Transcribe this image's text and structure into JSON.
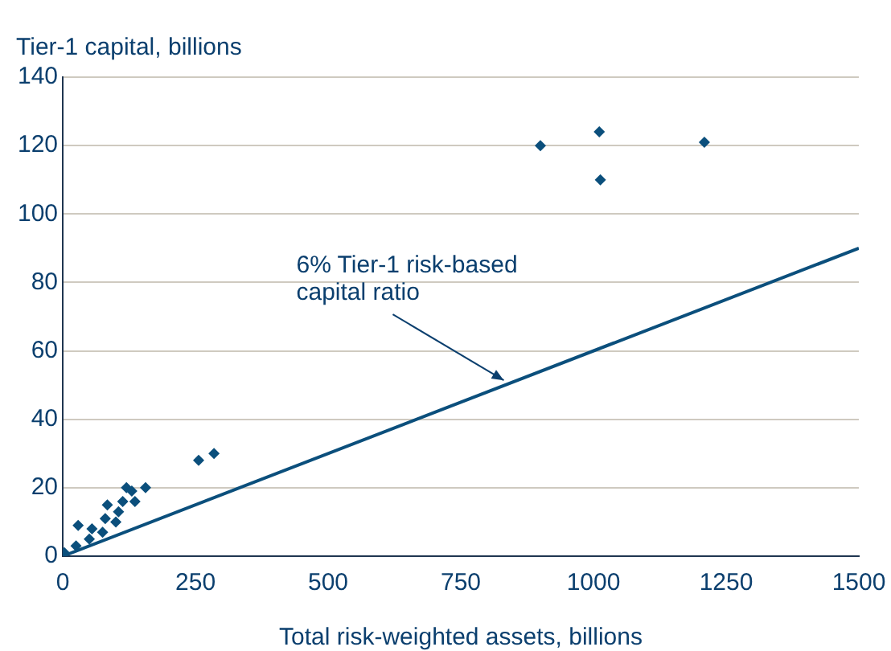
{
  "chart_data": {
    "type": "scatter",
    "xlabel": "Total risk-weighted assets, billions",
    "ylabel": "Tier-1 capital, billions",
    "xlim": [
      0,
      1500
    ],
    "xticks": [
      0,
      250,
      500,
      750,
      1000,
      1250,
      1500
    ],
    "ylim": [
      0,
      140
    ],
    "yticks": [
      0,
      20,
      40,
      60,
      80,
      100,
      120,
      140
    ],
    "grid": "y",
    "legend": false,
    "marker": "diamond",
    "series": [
      {
        "color": "#0b4f7c",
        "x": [
          900,
          1011,
          1013,
          1209,
          256,
          285,
          120,
          130,
          156,
          136,
          113,
          84,
          29,
          3,
          25,
          50,
          55,
          75,
          80,
          100,
          105
        ],
        "values": [
          120,
          124,
          110,
          121,
          28,
          30,
          20,
          19,
          20,
          16,
          16,
          15,
          9,
          1,
          3,
          5,
          8,
          7,
          11,
          10,
          13
        ]
      },
      {
        "type": "line",
        "color": "#0b4f7c",
        "x": [
          0,
          1500
        ],
        "values": [
          0,
          90
        ],
        "marker": "none"
      }
    ],
    "annotations": [
      {
        "text": "6% Tier-1 risk-based\ncapital ratio",
        "x": 834,
        "y": 50
      }
    ]
  }
}
